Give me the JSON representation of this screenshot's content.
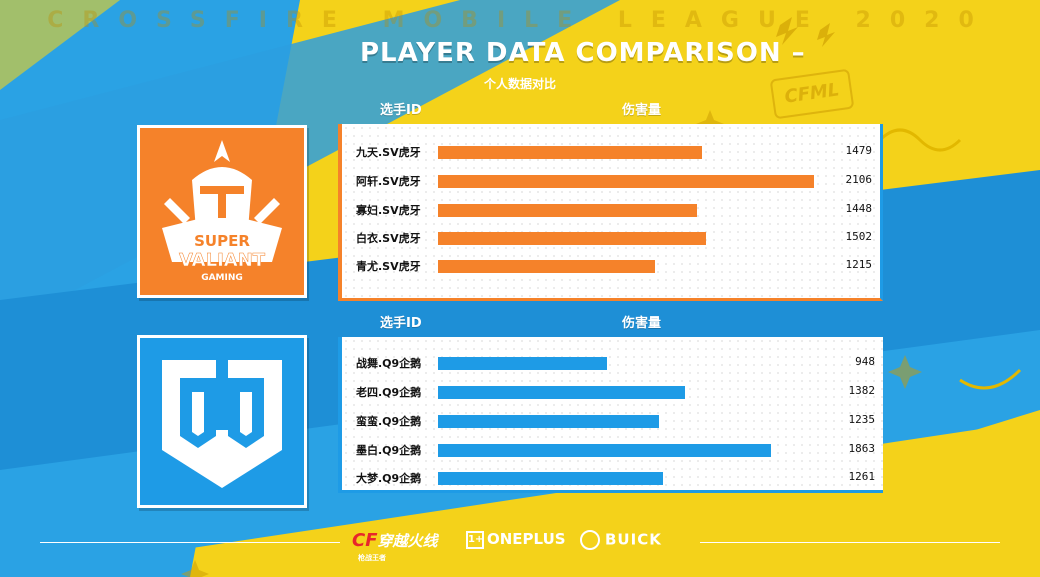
{
  "header": {
    "league_banner": "CROSSFIRE MOBILE LEAGUE 2020",
    "title": "PLAYER DATA COMPARISON –",
    "subtitle": "个人数据对比"
  },
  "badge": {
    "text": "CFML"
  },
  "colors": {
    "sv": "#f5822a",
    "q9": "#1e9be6",
    "background": "#f4d21a"
  },
  "teams": [
    {
      "id": "sv",
      "logo_text": [
        "SUPER",
        "VALIANT",
        "GAMING"
      ],
      "logo_icon": "super-valiant-helmet-icon"
    },
    {
      "id": "q9",
      "logo_icon": "q9-shield-logo-icon"
    }
  ],
  "sections": [
    {
      "col_id": "选手ID",
      "col_damage": "伤害量"
    },
    {
      "col_id": "选手ID",
      "col_damage": "伤害量"
    }
  ],
  "chart_data": [
    {
      "type": "bar",
      "orientation": "horizontal",
      "categories": [
        "九天.SV虎牙",
        "阿轩.SV虎牙",
        "寡妇.SV虎牙",
        "白衣.SV虎牙",
        "青尤.SV虎牙"
      ],
      "values": [
        1479,
        2106,
        1448,
        1502,
        1215
      ],
      "xlabel": "伤害量",
      "ylabel": "选手ID",
      "xlim": [
        0,
        2240
      ],
      "color": "#f5822a",
      "grid": false
    },
    {
      "type": "bar",
      "orientation": "horizontal",
      "categories": [
        "战舞.Q9企鹅",
        "老四.Q9企鹅",
        "蛮蛮.Q9企鹅",
        "墨白.Q9企鹅",
        "大梦.Q9企鹅"
      ],
      "values": [
        948,
        1382,
        1235,
        1863,
        1261
      ],
      "xlabel": "伤害量",
      "ylabel": "选手ID",
      "xlim": [
        0,
        2240
      ],
      "color": "#1e9be6",
      "grid": false
    }
  ],
  "footer": {
    "sponsors": [
      "穿越火线",
      "ONEPLUS",
      "BUICK"
    ],
    "cf_tagline": "枪战王者"
  }
}
